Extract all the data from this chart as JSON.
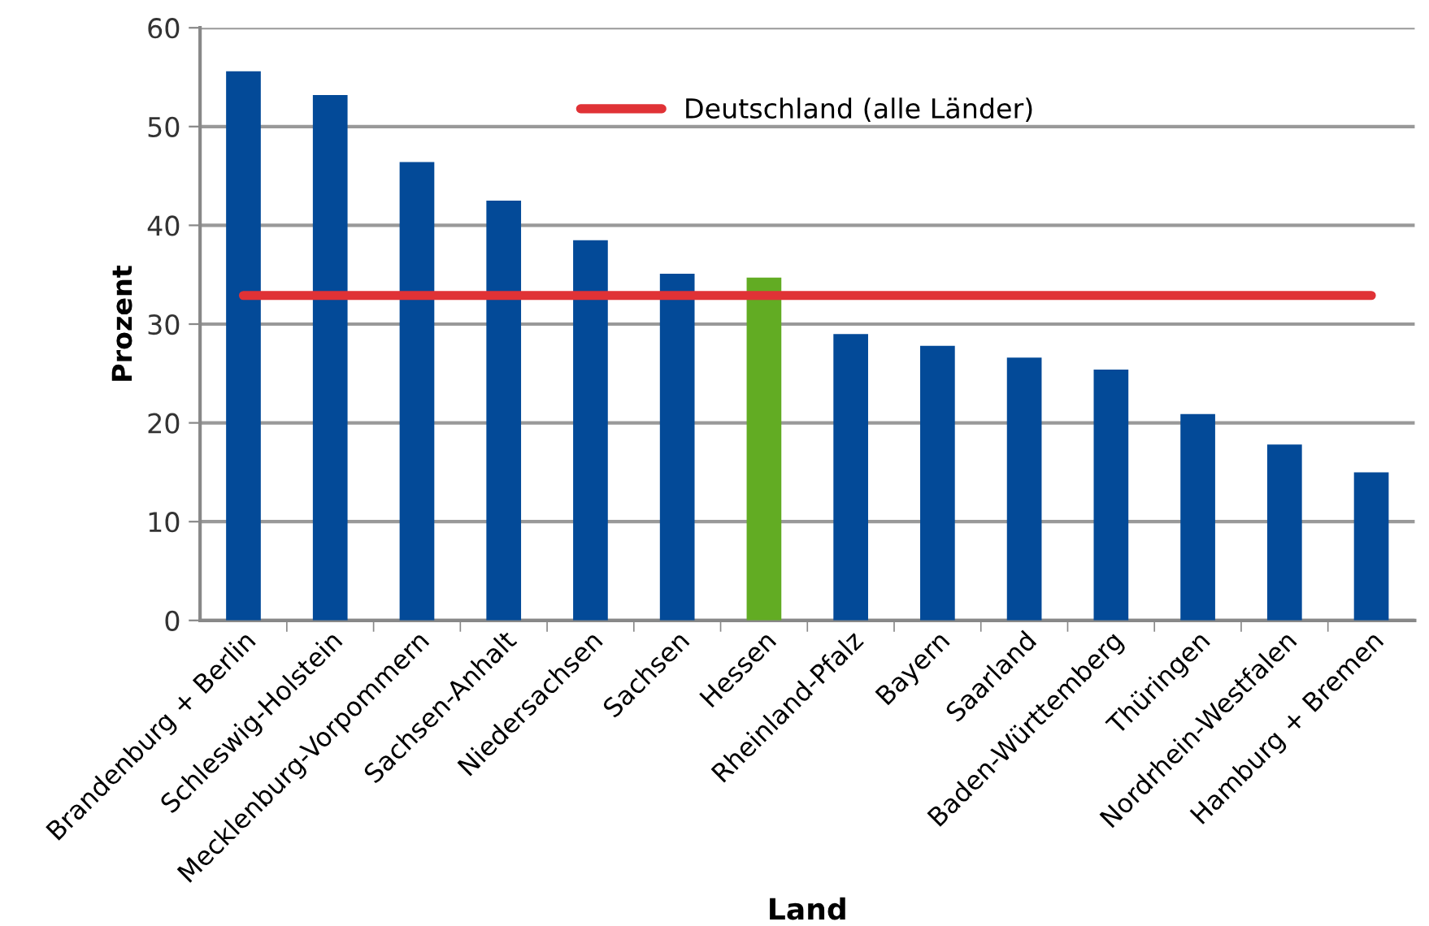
{
  "chart_data": {
    "type": "bar",
    "xlabel": "Land",
    "ylabel": "Prozent",
    "categories": [
      "Brandenburg + Berlin",
      "Schleswig-Holstein",
      "Mecklenburg-Vorpommern",
      "Sachsen-Anhalt",
      "Niedersachsen",
      "Sachsen",
      "Hessen",
      "Rheinland-Pfalz",
      "Bayern",
      "Saarland",
      "Baden-Württemberg",
      "Thüringen",
      "Nordrhein-Westfalen",
      "Hamburg + Bremen"
    ],
    "values": [
      55.6,
      53.2,
      46.4,
      42.5,
      38.5,
      35.1,
      34.7,
      29.0,
      27.8,
      26.6,
      25.4,
      20.9,
      17.8,
      15.0
    ],
    "colors": [
      "#034a98",
      "#034a98",
      "#034a98",
      "#034a98",
      "#034a98",
      "#034a98",
      "#62ac23",
      "#034a98",
      "#034a98",
      "#034a98",
      "#034a98",
      "#034a98",
      "#034a98",
      "#034a98"
    ],
    "ylim": [
      0,
      60
    ],
    "yticks": [
      0,
      10,
      20,
      30,
      40,
      50,
      60
    ],
    "grid": "y",
    "legend": "top",
    "ref_lines": [
      {
        "axis": "y",
        "value": 32.9,
        "label": "Deutschland (alle Länder)",
        "color": "#e03236",
        "line_style": "solid"
      }
    ]
  }
}
